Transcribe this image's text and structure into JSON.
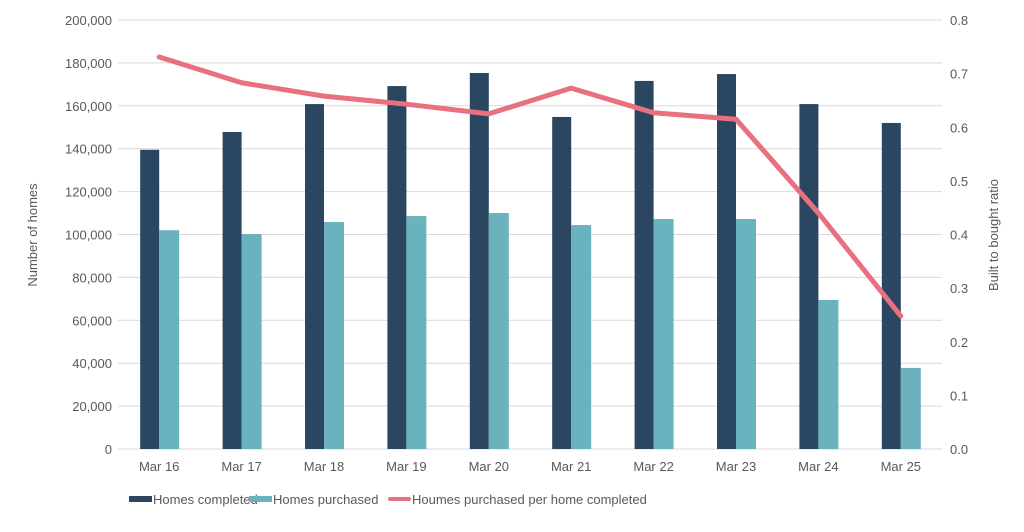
{
  "chart_data": {
    "type": "bar",
    "title": "",
    "xlabel": "",
    "ylabel": "Number of homes",
    "y2label": "Built to bought ratio",
    "ylim": [
      0,
      200000
    ],
    "y2lim": [
      0,
      0.8
    ],
    "yticks": [
      "0",
      "20,000",
      "40,000",
      "60,000",
      "80,000",
      "100,000",
      "120,000",
      "140,000",
      "160,000",
      "180,000",
      "200,000"
    ],
    "y2ticks": [
      "0.0",
      "0.1",
      "0.2",
      "0.3",
      "0.4",
      "0.5",
      "0.6",
      "0.7",
      "0.8"
    ],
    "grid": true,
    "legend_position": "bottom",
    "categories": [
      "Mar 16",
      "Mar 17",
      "Mar 18",
      "Mar 19",
      "Mar 20",
      "Mar 21",
      "Mar 22",
      "Mar 23",
      "Mar 24",
      "Mar 25"
    ],
    "series": [
      {
        "name": "Homes completed",
        "type": "bar",
        "axis": "left",
        "color": "#2a4660",
        "values": [
          139500,
          147800,
          160800,
          169200,
          175300,
          154800,
          171600,
          174800,
          160800,
          152000
        ]
      },
      {
        "name": "Homes purchased",
        "type": "bar",
        "axis": "left",
        "color": "#6ab2bd",
        "values": [
          102000,
          100200,
          105800,
          108600,
          110000,
          104400,
          107200,
          107200,
          69500,
          37800
        ]
      },
      {
        "name": "Houmes purchased per home completed",
        "type": "line",
        "axis": "right",
        "color": "#e8707f",
        "values": [
          0.731,
          0.683,
          0.658,
          0.643,
          0.625,
          0.673,
          0.627,
          0.615,
          0.44,
          0.248
        ]
      }
    ]
  }
}
